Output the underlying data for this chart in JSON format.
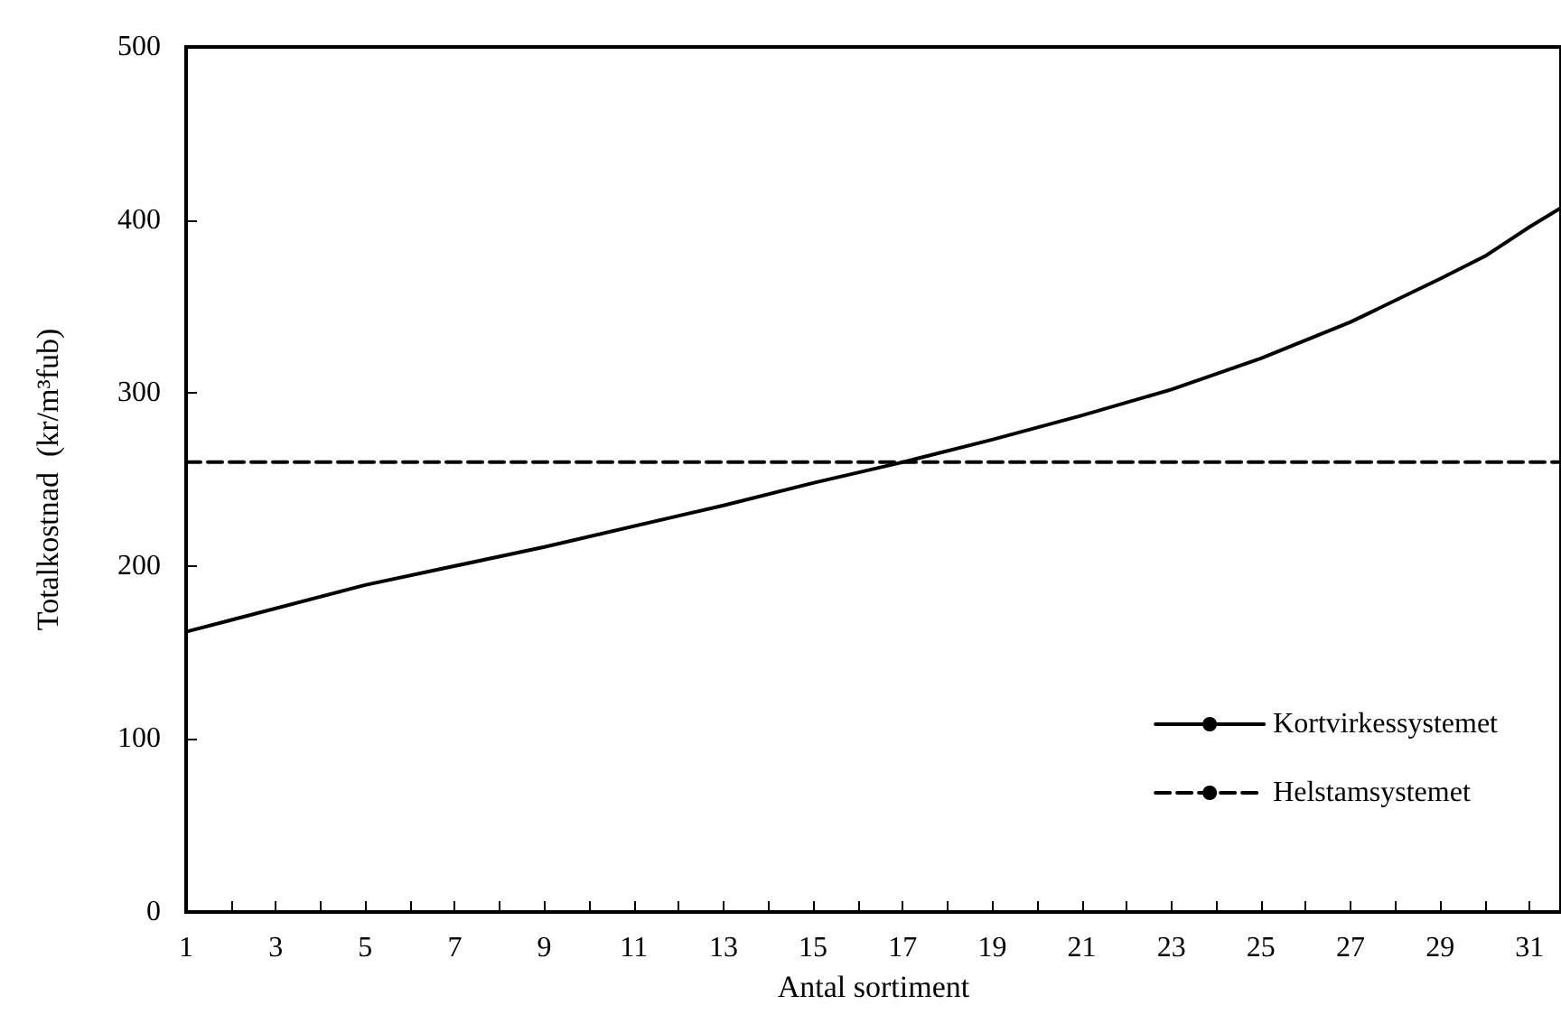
{
  "chart_data": {
    "type": "line",
    "xlabel": "Antal sortiment",
    "ylabel": "Totalkostnad  (kr/m³fub)",
    "xlim": [
      1,
      31.7
    ],
    "ylim": [
      0,
      500
    ],
    "xticks": [
      1,
      {
        "value": 2,
        "label": null
      },
      3,
      {
        "value": 4,
        "label": null
      },
      5,
      {
        "value": 6,
        "label": null
      },
      7,
      {
        "value": 8,
        "label": null
      },
      9,
      {
        "value": 10,
        "label": null
      },
      11,
      {
        "value": 12,
        "label": null
      },
      13,
      {
        "value": 14,
        "label": null
      },
      15,
      {
        "value": 16,
        "label": null
      },
      17,
      {
        "value": 18,
        "label": null
      },
      19,
      {
        "value": 20,
        "label": null
      },
      21,
      {
        "value": 22,
        "label": null
      },
      23,
      {
        "value": 24,
        "label": null
      },
      25,
      {
        "value": 26,
        "label": null
      },
      27,
      {
        "value": 28,
        "label": null
      },
      29,
      {
        "value": 30,
        "label": null
      },
      31
    ],
    "yticks": [
      0,
      100,
      200,
      300,
      400,
      500
    ],
    "series": [
      {
        "name": "Kortvirkessystemet",
        "color": "#000000",
        "line_style": "solid",
        "x": [
          1,
          5,
          9,
          13,
          15,
          17,
          19,
          21,
          23,
          25,
          27,
          29,
          30,
          31,
          31.7
        ],
        "values": [
          162,
          189,
          211,
          235,
          248,
          260,
          273,
          287,
          302,
          320,
          341,
          366,
          379,
          396,
          407
        ]
      },
      {
        "name": "Helstamsystemet",
        "color": "#000000",
        "line_style": "dashed",
        "x": [
          1,
          31.7
        ],
        "values": [
          260,
          260
        ]
      }
    ],
    "legend": "bottom right",
    "grid": false,
    "marker": "none"
  }
}
